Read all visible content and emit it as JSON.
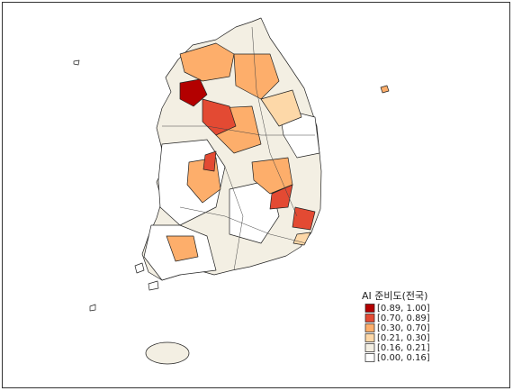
{
  "legend": {
    "title": "AI 준비도(전국)",
    "items": [
      {
        "label": "[0.89, 1.00]",
        "color": "#b30000"
      },
      {
        "label": "[0.70, 0.89]",
        "color": "#e34a33"
      },
      {
        "label": "[0.30, 0.70]",
        "color": "#fdae6b"
      },
      {
        "label": "[0.21, 0.30]",
        "color": "#fdd8a8"
      },
      {
        "label": "[0.16, 0.21]",
        "color": "#f3efe3"
      },
      {
        "label": "[0.00, 0.16]",
        "color": "#ffffff"
      }
    ]
  }
}
